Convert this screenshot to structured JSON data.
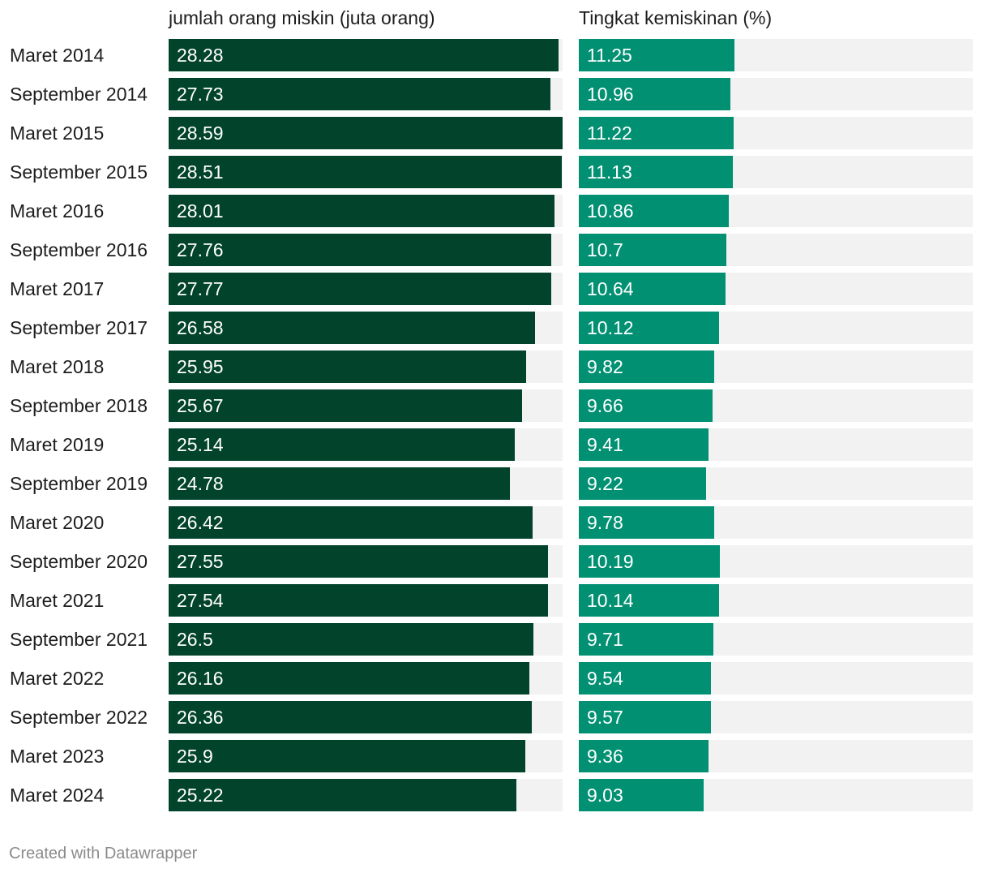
{
  "chart_data": {
    "type": "bar",
    "orientation": "horizontal",
    "categories": [
      "Maret 2014",
      "September 2014",
      "Maret 2015",
      "September 2015",
      "Maret 2016",
      "September 2016",
      "Maret 2017",
      "September 2017",
      "Maret 2018",
      "September 2018",
      "Maret 2019",
      "September 2019",
      "Maret 2020",
      "September 2020",
      "Maret 2021",
      "September 2021",
      "Maret 2022",
      "September 2022",
      "Maret 2023",
      "Maret 2024"
    ],
    "series": [
      {
        "name": "jumlah orang miskin (juta orang)",
        "color": "#02432c",
        "max": 28.59,
        "values": [
          "28.28",
          "27.73",
          "28.59",
          "28.51",
          "28.01",
          "27.76",
          "27.77",
          "26.58",
          "25.95",
          "25.67",
          "25.14",
          "24.78",
          "26.42",
          "27.55",
          "27.54",
          "26.5",
          "26.16",
          "26.36",
          "25.9",
          "25.22"
        ]
      },
      {
        "name": "Tingkat kemiskinan (%)",
        "color": "#029073",
        "max": 28.5,
        "values": [
          "11.25",
          "10.96",
          "11.22",
          "11.13",
          "10.86",
          "10.7",
          "10.64",
          "10.12",
          "9.82",
          "9.66",
          "9.41",
          "9.22",
          "9.78",
          "10.19",
          "10.14",
          "9.71",
          "9.54",
          "9.57",
          "9.36",
          "9.03"
        ]
      }
    ],
    "track_color": "#f2f2f2"
  },
  "footer": "Created with Datawrapper"
}
